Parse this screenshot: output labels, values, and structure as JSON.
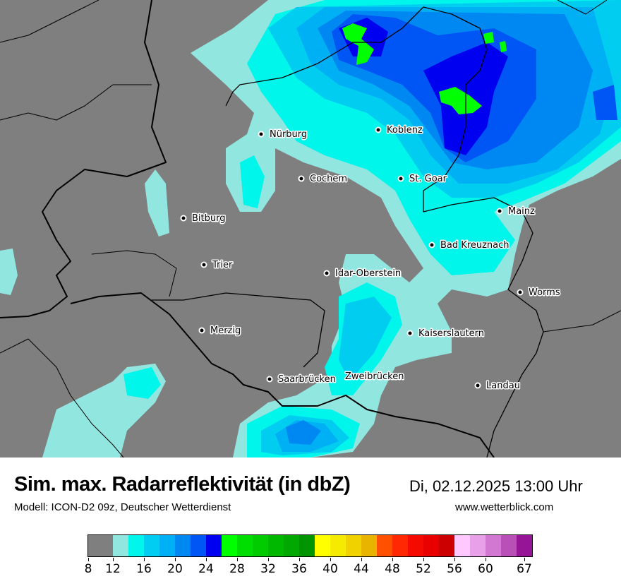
{
  "header": {
    "title": "Sim. max. Radarreflektivität (in dbZ)",
    "datetime": "Di, 02.12.2025 13:00 Uhr",
    "model": "Modell: ICON-D2 09z, Deutscher Wetterdienst",
    "site": "www.wetterblick.com"
  },
  "map": {
    "background_color": "#7f7f7f",
    "cities": [
      {
        "name": "Nürburg",
        "dot": true
      },
      {
        "name": "Koblenz",
        "dot": true
      },
      {
        "name": "Cochem",
        "dot": true
      },
      {
        "name": "St. Goar",
        "dot": true
      },
      {
        "name": "Bitburg",
        "dot": true
      },
      {
        "name": "Mainz",
        "dot": true
      },
      {
        "name": "Bad Kreuznach",
        "dot": true
      },
      {
        "name": "Trier",
        "dot": true
      },
      {
        "name": "Idar-Oberstein",
        "dot": true
      },
      {
        "name": "Worms",
        "dot": true
      },
      {
        "name": "Merzig",
        "dot": true
      },
      {
        "name": "Kaiserslautern",
        "dot": true
      },
      {
        "name": "Saarbrücken",
        "dot": true
      },
      {
        "name": "Zweibrücken",
        "dot": false
      },
      {
        "name": "Landau",
        "dot": true
      }
    ]
  },
  "legend": {
    "unit": "dbZ",
    "segments": [
      {
        "from": 8,
        "to": 12,
        "color": "#7f7f7f"
      },
      {
        "from": 12,
        "to": 14,
        "color": "#92e6e0"
      },
      {
        "from": 14,
        "to": 16,
        "color": "#00f5eb"
      },
      {
        "from": 16,
        "to": 18,
        "color": "#00cdf0"
      },
      {
        "from": 18,
        "to": 20,
        "color": "#00b0f5"
      },
      {
        "from": 20,
        "to": 22,
        "color": "#0088f2"
      },
      {
        "from": 22,
        "to": 24,
        "color": "#0055f5"
      },
      {
        "from": 24,
        "to": 26,
        "color": "#0000f0"
      },
      {
        "from": 26,
        "to": 28,
        "color": "#00ff00"
      },
      {
        "from": 28,
        "to": 30,
        "color": "#00dd00"
      },
      {
        "from": 30,
        "to": 32,
        "color": "#00cc00"
      },
      {
        "from": 32,
        "to": 34,
        "color": "#00b800"
      },
      {
        "from": 34,
        "to": 36,
        "color": "#00a800"
      },
      {
        "from": 36,
        "to": 38,
        "color": "#009400"
      },
      {
        "from": 38,
        "to": 40,
        "color": "#ffff00"
      },
      {
        "from": 40,
        "to": 42,
        "color": "#f5eb00"
      },
      {
        "from": 42,
        "to": 44,
        "color": "#f0d200"
      },
      {
        "from": 44,
        "to": 46,
        "color": "#e8b400"
      },
      {
        "from": 46,
        "to": 48,
        "color": "#ff5000"
      },
      {
        "from": 48,
        "to": 50,
        "color": "#ff2800"
      },
      {
        "from": 50,
        "to": 52,
        "color": "#f50a00"
      },
      {
        "from": 52,
        "to": 54,
        "color": "#e80000"
      },
      {
        "from": 54,
        "to": 56,
        "color": "#cc0000"
      },
      {
        "from": 56,
        "to": 58,
        "color": "#ffc8ff"
      },
      {
        "from": 58,
        "to": 60,
        "color": "#e8a0e8"
      },
      {
        "from": 60,
        "to": 62,
        "color": "#d278d2"
      },
      {
        "from": 62,
        "to": 64,
        "color": "#b850b8"
      },
      {
        "from": 64,
        "to": 67,
        "color": "#961496"
      }
    ],
    "ticks": [
      "8",
      "12",
      "16",
      "20",
      "24",
      "28",
      "32",
      "36",
      "40",
      "44",
      "48",
      "52",
      "56",
      "60",
      "67"
    ]
  }
}
